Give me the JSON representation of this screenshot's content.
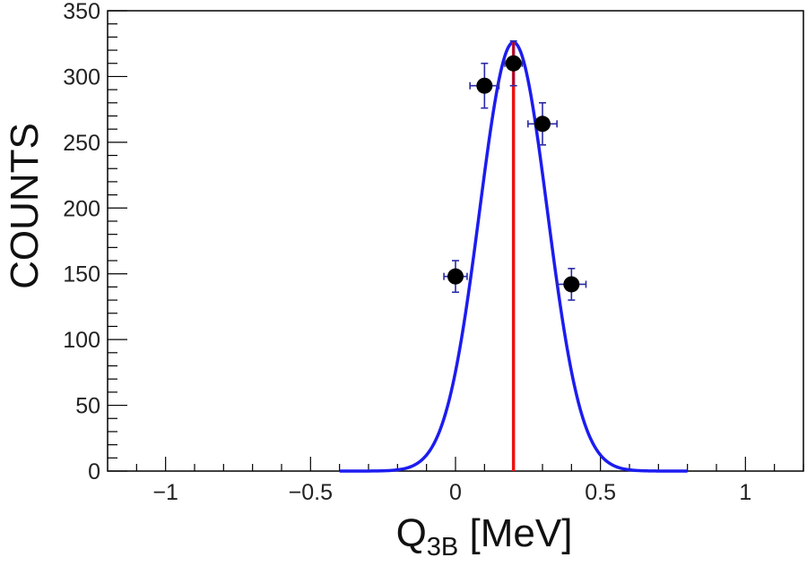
{
  "chart_data": {
    "type": "scatter",
    "title": "",
    "xlabel": {
      "main": "Q",
      "sub": "3B",
      "unit": " [MeV]"
    },
    "ylabel": "COUNTS",
    "xlim": [
      -1.2,
      1.2
    ],
    "ylim": [
      0,
      350
    ],
    "x_ticks": [
      {
        "value": -1,
        "label": "−1"
      },
      {
        "value": -0.5,
        "label": "−0.5"
      },
      {
        "value": 0,
        "label": "0"
      },
      {
        "value": 0.5,
        "label": "0.5"
      },
      {
        "value": 1,
        "label": "1"
      }
    ],
    "x_minor_step": 0.1,
    "y_ticks": [
      {
        "value": 0,
        "label": "0"
      },
      {
        "value": 50,
        "label": "50"
      },
      {
        "value": 100,
        "label": "100"
      },
      {
        "value": 150,
        "label": "150"
      },
      {
        "value": 200,
        "label": "200"
      },
      {
        "value": 250,
        "label": "250"
      },
      {
        "value": 300,
        "label": "300"
      },
      {
        "value": 350,
        "label": "350"
      }
    ],
    "y_minor_step": 10,
    "points": [
      {
        "x": 0.0,
        "y": 148,
        "xerr": 0.04,
        "yerr": 12
      },
      {
        "x": 0.1,
        "y": 293,
        "xerr": 0.05,
        "yerr": 17
      },
      {
        "x": 0.2,
        "y": 310,
        "xerr": 0.03,
        "yerr": 17
      },
      {
        "x": 0.3,
        "y": 264,
        "xerr": 0.05,
        "yerr": 16
      },
      {
        "x": 0.4,
        "y": 142,
        "xerr": 0.05,
        "yerr": 12
      }
    ],
    "fit": {
      "type": "gaussian",
      "amplitude": 326,
      "mean": 0.2,
      "sigma": 0.117,
      "x_range": [
        -0.4,
        0.8
      ],
      "color": "#1c1cf0"
    },
    "marker_line": {
      "x": 0.2,
      "y_top": 326,
      "color": "#ee1111"
    },
    "point_color": "#000000",
    "errorbar_color": "#2a2aa8",
    "grid": false,
    "legend": "none"
  }
}
